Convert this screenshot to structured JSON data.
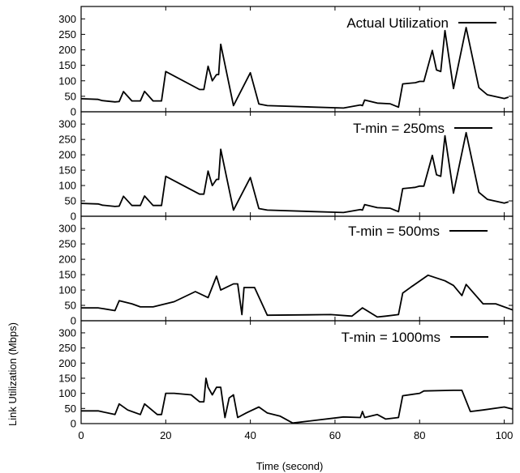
{
  "chart_data": {
    "type": "line",
    "xlabel": "Time (second)",
    "ylabel": "Link Utilization (Mbps)",
    "xlim": [
      0,
      102
    ],
    "ylim": [
      0,
      340
    ],
    "x_ticks": [
      0,
      20,
      40,
      60,
      80,
      100
    ],
    "y_ticks": [
      0,
      50,
      100,
      150,
      200,
      250,
      300
    ],
    "grid": false,
    "legend_position": "top-right",
    "panels": [
      {
        "series": [
          {
            "name": "Actual Utilization",
            "x": [
              0,
              4,
              5,
              8,
              9,
              10,
              12,
              14,
              15,
              17,
              19,
              20,
              28,
              29,
              30,
              31,
              32,
              32.5,
              33,
              36,
              40,
              42,
              44,
              62,
              66,
              66.5,
              67,
              70,
              73,
              75,
              76,
              79,
              80,
              81,
              83,
              84,
              85,
              86,
              88,
              91,
              94,
              96,
              100,
              101
            ],
            "y": [
              42,
              40,
              36,
              32,
              33,
              65,
              35,
              35,
              66,
              35,
              35,
              130,
              72,
              72,
              147,
              100,
              120,
              120,
              218,
              20,
              126,
              25,
              20,
              12,
              22,
              20,
              38,
              28,
              26,
              15,
              90,
              94,
              98,
              98,
              198,
              135,
              130,
              262,
              75,
              272,
              78,
              55,
              43,
              47
            ]
          }
        ]
      },
      {
        "series": [
          {
            "name": "T-min = 250ms",
            "x": [
              0,
              4,
              5,
              8,
              9,
              10,
              12,
              14,
              15,
              17,
              19,
              20,
              28,
              29,
              30,
              31,
              32,
              32.5,
              33,
              36,
              40,
              42,
              44,
              62,
              66,
              66.5,
              67,
              70,
              73,
              75,
              76,
              79,
              80,
              81,
              83,
              84,
              85,
              86,
              88,
              91,
              94,
              96,
              100,
              101
            ],
            "y": [
              42,
              40,
              36,
              32,
              33,
              65,
              35,
              35,
              66,
              35,
              35,
              130,
              72,
              72,
              147,
              100,
              120,
              120,
              218,
              20,
              126,
              25,
              20,
              12,
              22,
              20,
              38,
              28,
              26,
              15,
              90,
              94,
              98,
              98,
              198,
              135,
              130,
              262,
              75,
              272,
              78,
              55,
              43,
              47
            ]
          }
        ]
      },
      {
        "series": [
          {
            "name": "T-min = 500ms",
            "x": [
              0,
              4,
              8,
              9,
              12,
              14,
              17,
              22,
              27,
              30,
              32,
              33,
              36,
              37,
              38,
              38.5,
              39,
              41,
              44,
              59,
              64,
              66.5,
              70,
              72,
              75,
              76,
              78,
              82,
              86,
              88,
              90,
              91,
              95,
              98,
              102
            ],
            "y": [
              42,
              42,
              33,
              65,
              55,
              45,
              45,
              62,
              95,
              75,
              145,
              100,
              120,
              120,
              20,
              108,
              108,
              108,
              18,
              20,
              15,
              42,
              12,
              15,
              20,
              90,
              110,
              148,
              130,
              115,
              82,
              118,
              55,
              55,
              35
            ]
          }
        ]
      },
      {
        "series": [
          {
            "name": "T-min = 1000ms",
            "x": [
              0,
              4,
              8,
              9,
              11,
              14,
              15,
              18,
              19,
              20,
              22,
              26,
              28,
              29,
              29.5,
              30,
              31,
              32,
              33,
              34,
              35,
              36,
              37,
              39,
              42,
              44,
              47,
              50,
              62,
              66,
              66.5,
              67,
              70,
              72,
              75,
              76,
              80,
              81,
              88,
              90,
              92,
              95,
              100,
              102
            ],
            "y": [
              42,
              42,
              30,
              65,
              45,
              30,
              65,
              30,
              30,
              100,
              100,
              95,
              72,
              72,
              150,
              120,
              95,
              120,
              120,
              20,
              85,
              95,
              20,
              35,
              55,
              35,
              25,
              2,
              22,
              20,
              40,
              20,
              30,
              15,
              20,
              92,
              100,
              108,
              110,
              110,
              40,
              45,
              55,
              48
            ]
          }
        ]
      }
    ]
  }
}
